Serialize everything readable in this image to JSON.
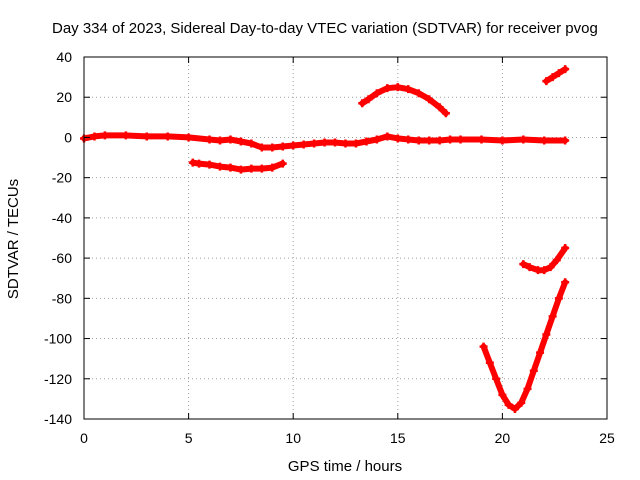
{
  "chart_data": {
    "type": "scatter",
    "title": "Day 334 of 2023, Sidereal Day-to-day VTEC variation (SDTVAR) for receiver pvog",
    "xlabel": "GPS time / hours",
    "ylabel": "SDTVAR / TECUs",
    "xlim": [
      0,
      25
    ],
    "ylim": [
      -140,
      40
    ],
    "xticks": [
      0,
      5,
      10,
      15,
      20,
      25
    ],
    "yticks": [
      -140,
      -120,
      -100,
      -80,
      -60,
      -40,
      -20,
      0,
      20,
      40
    ],
    "xtick_labels": [
      "0",
      "5",
      "10",
      "15",
      "20",
      "25"
    ],
    "ytick_labels": [
      "-140",
      "-120",
      "-100",
      "-80",
      "-60",
      "-40",
      "-20",
      "0",
      "20",
      "40"
    ],
    "grid": true,
    "marker_color": "#ff0000",
    "series": [
      {
        "name": "baseline",
        "points": [
          [
            0,
            -0.5
          ],
          [
            0.5,
            0.5
          ],
          [
            1,
            1
          ],
          [
            2,
            1
          ],
          [
            3,
            0.5
          ],
          [
            4,
            0.5
          ],
          [
            5,
            0
          ],
          [
            6,
            -1
          ],
          [
            6.5,
            -1.5
          ],
          [
            7,
            -1
          ],
          [
            7.5,
            -2
          ],
          [
            8,
            -3
          ],
          [
            8.5,
            -5
          ],
          [
            9,
            -5
          ],
          [
            9.5,
            -4.5
          ],
          [
            10,
            -4
          ],
          [
            10.5,
            -3.5
          ],
          [
            11,
            -3
          ],
          [
            11.5,
            -2.5
          ],
          [
            12,
            -2.5
          ],
          [
            12.5,
            -3
          ],
          [
            13,
            -3
          ],
          [
            13.5,
            -2
          ],
          [
            14,
            -1
          ],
          [
            14.5,
            0.5
          ],
          [
            15,
            -0.5
          ],
          [
            15.5,
            -1
          ],
          [
            16,
            -1.5
          ],
          [
            16.5,
            -1.5
          ],
          [
            17,
            -1.5
          ],
          [
            17.5,
            -1
          ],
          [
            18,
            -1
          ],
          [
            19,
            -1
          ],
          [
            20,
            -1.5
          ],
          [
            21,
            -1
          ],
          [
            22,
            -1.5
          ],
          [
            23,
            -1.5
          ]
        ]
      },
      {
        "name": "arc-low-5-10",
        "points": [
          [
            5.2,
            -12.5
          ],
          [
            5.5,
            -13
          ],
          [
            6,
            -13.5
          ],
          [
            6.5,
            -14.5
          ],
          [
            7,
            -15
          ],
          [
            7.5,
            -16
          ],
          [
            8,
            -15.5
          ],
          [
            8.5,
            -15.5
          ],
          [
            9,
            -15
          ],
          [
            9.5,
            -13
          ]
        ]
      },
      {
        "name": "arc-peak-13-17",
        "points": [
          [
            13.3,
            17
          ],
          [
            13.6,
            19
          ],
          [
            14,
            22
          ],
          [
            14.5,
            24.5
          ],
          [
            15,
            25
          ],
          [
            15.5,
            24
          ],
          [
            16,
            22
          ],
          [
            16.5,
            19
          ],
          [
            17,
            15
          ],
          [
            17.3,
            12
          ]
        ]
      },
      {
        "name": "arc-top-right",
        "points": [
          [
            22.1,
            28
          ],
          [
            22.4,
            30
          ],
          [
            22.7,
            32
          ],
          [
            23,
            34
          ]
        ]
      },
      {
        "name": "arc-mid-right",
        "points": [
          [
            21,
            -63
          ],
          [
            21.3,
            -64.5
          ],
          [
            21.7,
            -66
          ],
          [
            22,
            -66
          ],
          [
            22.3,
            -64.5
          ],
          [
            22.6,
            -61
          ],
          [
            23,
            -55
          ]
        ]
      },
      {
        "name": "arc-deep-dip",
        "points": [
          [
            19.1,
            -104
          ],
          [
            19.4,
            -112
          ],
          [
            19.7,
            -120
          ],
          [
            20,
            -128
          ],
          [
            20.3,
            -133
          ],
          [
            20.6,
            -135
          ],
          [
            20.9,
            -132
          ],
          [
            21.2,
            -125
          ],
          [
            21.5,
            -116
          ],
          [
            21.8,
            -107
          ],
          [
            22.1,
            -98
          ],
          [
            22.4,
            -89
          ],
          [
            22.7,
            -80
          ],
          [
            23,
            -72
          ]
        ]
      }
    ]
  }
}
